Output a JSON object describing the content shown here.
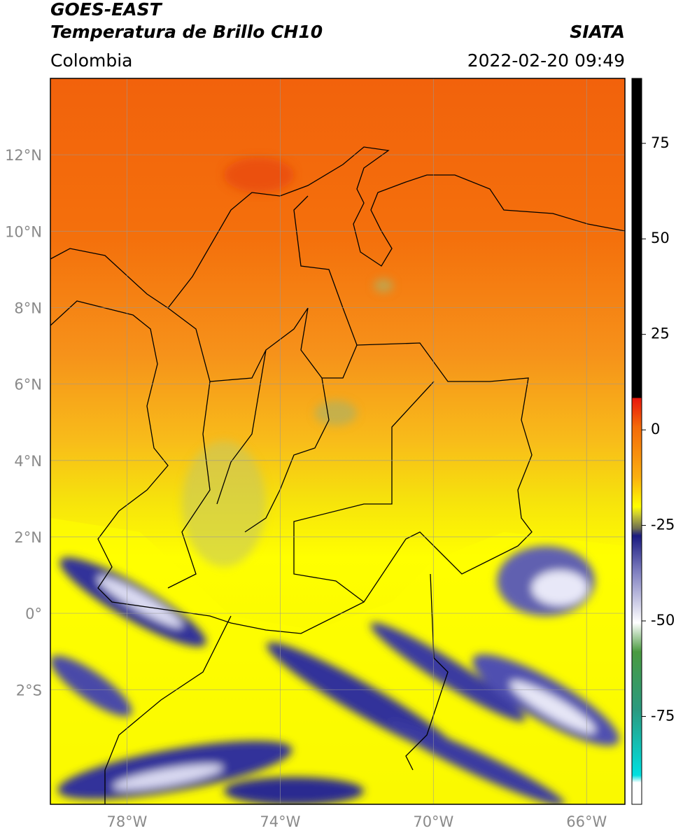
{
  "header": {
    "title": "GOES-EAST",
    "product": "Temperatura de Brillo CH10",
    "source": "SIATA",
    "region": "Colombia",
    "datetime": "2022-02-20 09:49"
  },
  "map": {
    "xlim": [
      -80,
      -65
    ],
    "ylim": [
      -5,
      14
    ],
    "lat_ticks": [
      {
        "value": 12,
        "label": "12°N"
      },
      {
        "value": 10,
        "label": "10°N"
      },
      {
        "value": 8,
        "label": "8°N"
      },
      {
        "value": 6,
        "label": "6°N"
      },
      {
        "value": 4,
        "label": "4°N"
      },
      {
        "value": 2,
        "label": "2°N"
      },
      {
        "value": 0,
        "label": "0°"
      },
      {
        "value": -2,
        "label": "2°S"
      }
    ],
    "lon_ticks": [
      {
        "value": -78,
        "label": "78°W"
      },
      {
        "value": -74,
        "label": "74°W"
      },
      {
        "value": -70,
        "label": "70°W"
      },
      {
        "value": -66,
        "label": "66°W"
      }
    ],
    "grid": true
  },
  "colorbar": {
    "lim": [
      -98,
      92
    ],
    "ticks": [
      75,
      50,
      25,
      0,
      -25,
      -50,
      -75
    ]
  }
}
